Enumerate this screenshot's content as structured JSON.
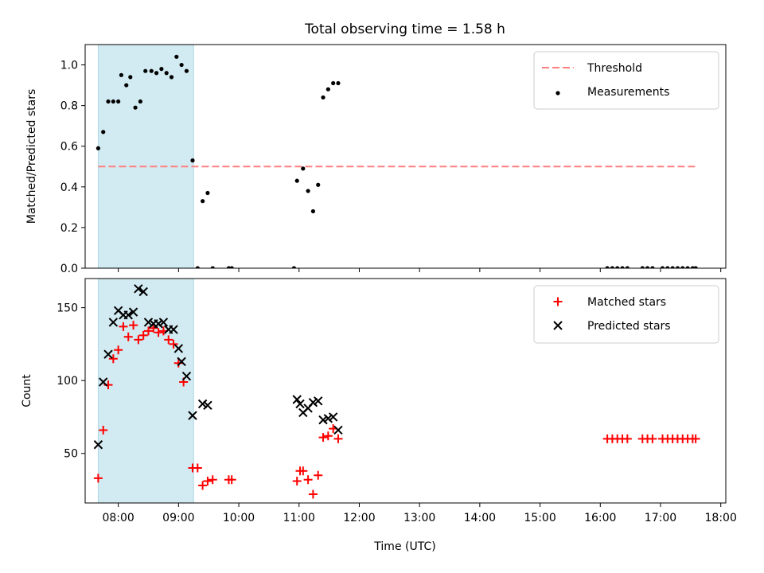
{
  "figure": {
    "title": "Total observing time = 1.58 h",
    "xlabel": "Time (UTC)",
    "x_ticks": [
      "08:00",
      "09:00",
      "10:00",
      "11:00",
      "12:00",
      "13:00",
      "14:00",
      "15:00",
      "16:00",
      "17:00",
      "18:00"
    ],
    "colors": {
      "threshold": "#ff7f7f",
      "measurement": "#000000",
      "matched": "#ff0000",
      "predicted": "#000000",
      "observing_span": "#add8e6"
    }
  },
  "chart_data": [
    {
      "type": "scatter",
      "ylabel": "Matched/Predicted stars",
      "xlim": [
        "07:27",
        "18:05"
      ],
      "ylim": [
        0,
        1.1
      ],
      "y_ticks": [
        "0.0",
        "0.2",
        "0.4",
        "0.6",
        "0.8",
        "1.0"
      ],
      "legend_position": "top-right",
      "observing_span": [
        "07:40",
        "09:15"
      ],
      "threshold": {
        "name": "Threshold",
        "value": 0.5,
        "x_range": [
          "07:40",
          "17:35"
        ]
      },
      "series": [
        {
          "name": "Measurements",
          "marker": "dot",
          "points": [
            [
              "07:40",
              0.59
            ],
            [
              "07:45",
              0.67
            ],
            [
              "07:50",
              0.82
            ],
            [
              "07:55",
              0.82
            ],
            [
              "08:00",
              0.82
            ],
            [
              "08:03",
              0.95
            ],
            [
              "08:08",
              0.9
            ],
            [
              "08:12",
              0.94
            ],
            [
              "08:17",
              0.79
            ],
            [
              "08:22",
              0.82
            ],
            [
              "08:27",
              0.97
            ],
            [
              "08:33",
              0.97
            ],
            [
              "08:38",
              0.96
            ],
            [
              "08:43",
              0.98
            ],
            [
              "08:48",
              0.96
            ],
            [
              "08:53",
              0.94
            ],
            [
              "08:58",
              1.04
            ],
            [
              "09:03",
              1.0
            ],
            [
              "09:08",
              0.97
            ],
            [
              "09:14",
              0.53
            ],
            [
              "09:19",
              0.0
            ],
            [
              "09:24",
              0.33
            ],
            [
              "09:29",
              0.37
            ],
            [
              "09:34",
              0.0
            ],
            [
              "09:50",
              0.0
            ],
            [
              "09:53",
              0.0
            ],
            [
              "10:55",
              0.0
            ],
            [
              "10:58",
              0.43
            ],
            [
              "11:04",
              0.49
            ],
            [
              "11:09",
              0.38
            ],
            [
              "11:14",
              0.28
            ],
            [
              "11:19",
              0.41
            ],
            [
              "11:24",
              0.84
            ],
            [
              "11:29",
              0.88
            ],
            [
              "11:34",
              0.91
            ],
            [
              "11:39",
              0.91
            ],
            [
              "16:07",
              0.0
            ],
            [
              "16:12",
              0.0
            ],
            [
              "16:17",
              0.0
            ],
            [
              "16:22",
              0.0
            ],
            [
              "16:27",
              0.0
            ],
            [
              "16:42",
              0.0
            ],
            [
              "16:47",
              0.0
            ],
            [
              "16:52",
              0.0
            ],
            [
              "17:02",
              0.0
            ],
            [
              "17:07",
              0.0
            ],
            [
              "17:12",
              0.0
            ],
            [
              "17:17",
              0.0
            ],
            [
              "17:22",
              0.0
            ],
            [
              "17:27",
              0.0
            ],
            [
              "17:32",
              0.0
            ],
            [
              "17:35",
              0.0
            ]
          ]
        }
      ]
    },
    {
      "type": "scatter",
      "ylabel": "Count",
      "xlim": [
        "07:27",
        "18:05"
      ],
      "ylim": [
        16,
        170
      ],
      "y_ticks": [
        "50",
        "100",
        "150"
      ],
      "legend_position": "top-right",
      "observing_span": [
        "07:40",
        "09:15"
      ],
      "series": [
        {
          "name": "Matched stars",
          "marker": "plus",
          "points": [
            [
              "07:40",
              33
            ],
            [
              "07:45",
              66
            ],
            [
              "07:50",
              97
            ],
            [
              "07:55",
              115
            ],
            [
              "08:00",
              121
            ],
            [
              "08:05",
              137
            ],
            [
              "08:10",
              130
            ],
            [
              "08:15",
              138
            ],
            [
              "08:20",
              128
            ],
            [
              "08:25",
              131
            ],
            [
              "08:30",
              134
            ],
            [
              "08:35",
              136
            ],
            [
              "08:40",
              133
            ],
            [
              "08:45",
              134
            ],
            [
              "08:50",
              128
            ],
            [
              "08:55",
              125
            ],
            [
              "09:00",
              112
            ],
            [
              "09:05",
              99
            ],
            [
              "09:14",
              40
            ],
            [
              "09:19",
              40
            ],
            [
              "09:24",
              28
            ],
            [
              "09:29",
              31
            ],
            [
              "09:34",
              32
            ],
            [
              "09:50",
              32
            ],
            [
              "09:53",
              32
            ],
            [
              "10:58",
              31
            ],
            [
              "11:01",
              38
            ],
            [
              "11:04",
              38
            ],
            [
              "11:09",
              32
            ],
            [
              "11:14",
              22
            ],
            [
              "11:19",
              35
            ],
            [
              "11:24",
              61
            ],
            [
              "11:29",
              62
            ],
            [
              "11:34",
              67
            ],
            [
              "11:39",
              60
            ],
            [
              "16:07",
              60
            ],
            [
              "16:12",
              60
            ],
            [
              "16:17",
              60
            ],
            [
              "16:22",
              60
            ],
            [
              "16:27",
              60
            ],
            [
              "16:42",
              60
            ],
            [
              "16:47",
              60
            ],
            [
              "16:52",
              60
            ],
            [
              "17:02",
              60
            ],
            [
              "17:07",
              60
            ],
            [
              "17:12",
              60
            ],
            [
              "17:17",
              60
            ],
            [
              "17:22",
              60
            ],
            [
              "17:27",
              60
            ],
            [
              "17:32",
              60
            ],
            [
              "17:35",
              60
            ]
          ]
        },
        {
          "name": "Predicted stars",
          "marker": "x",
          "points": [
            [
              "07:40",
              56
            ],
            [
              "07:45",
              99
            ],
            [
              "07:50",
              118
            ],
            [
              "07:55",
              140
            ],
            [
              "08:00",
              148
            ],
            [
              "08:05",
              145
            ],
            [
              "08:10",
              145
            ],
            [
              "08:15",
              147
            ],
            [
              "08:20",
              163
            ],
            [
              "08:25",
              161
            ],
            [
              "08:30",
              140
            ],
            [
              "08:35",
              139
            ],
            [
              "08:40",
              139
            ],
            [
              "08:45",
              140
            ],
            [
              "08:50",
              135
            ],
            [
              "08:55",
              135
            ],
            [
              "09:00",
              122
            ],
            [
              "09:03",
              113
            ],
            [
              "09:08",
              103
            ],
            [
              "09:14",
              76
            ],
            [
              "09:24",
              84
            ],
            [
              "09:29",
              83
            ],
            [
              "10:58",
              87
            ],
            [
              "11:01",
              84
            ],
            [
              "11:04",
              78
            ],
            [
              "11:09",
              81
            ],
            [
              "11:14",
              85
            ],
            [
              "11:19",
              86
            ],
            [
              "11:24",
              73
            ],
            [
              "11:29",
              74
            ],
            [
              "11:34",
              75
            ],
            [
              "11:39",
              66
            ]
          ]
        }
      ]
    }
  ]
}
